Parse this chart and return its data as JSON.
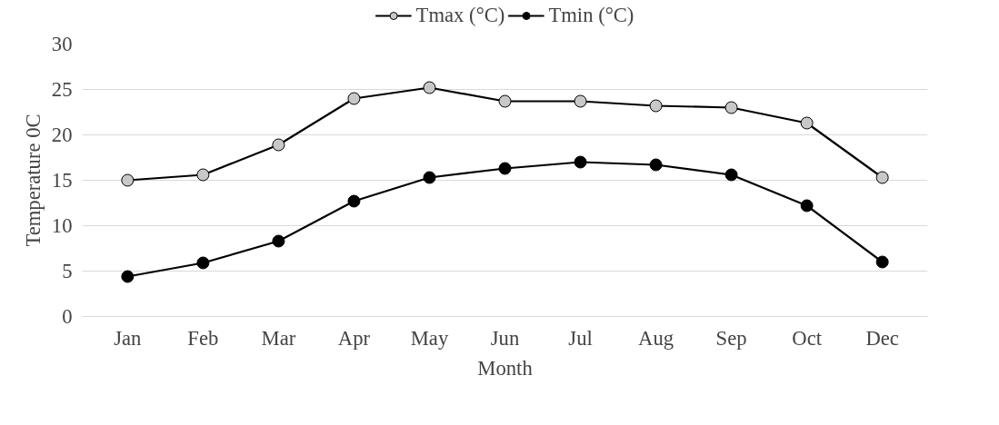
{
  "chart_data": {
    "type": "line",
    "xlabel": "Month",
    "ylabel": "Temperature 0C",
    "categories": [
      "Jan",
      "Feb",
      "Mar",
      "Apr",
      "May",
      "Jun",
      "Jul",
      "Aug",
      "Sep",
      "Oct",
      "Dec"
    ],
    "series": [
      {
        "name": "Tmax (°C)",
        "color": "#000000",
        "values": [
          15.0,
          15.6,
          18.9,
          24.0,
          25.2,
          23.7,
          23.7,
          23.2,
          23.0,
          21.3,
          15.3
        ]
      },
      {
        "name": "Tmin (°C)",
        "color": "#000000",
        "values": [
          4.4,
          5.9,
          8.3,
          12.7,
          15.3,
          16.3,
          17.0,
          16.7,
          15.6,
          12.2,
          6.0
        ]
      }
    ],
    "ylim": [
      0,
      30
    ],
    "yticks": [
      0,
      5,
      10,
      15,
      20,
      25,
      30
    ],
    "grid": "y",
    "legend": "top",
    "marker": "circle",
    "line_style": "solid"
  }
}
